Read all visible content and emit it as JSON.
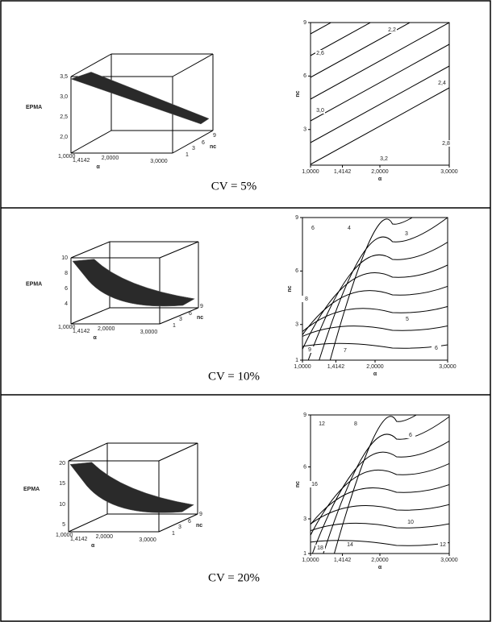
{
  "panels": [
    {
      "caption": "CV = 5%",
      "surface": {
        "z_label": "EPMA",
        "x_label": "α",
        "y_label": "nc",
        "z_ticks": [
          "3,5",
          "3,0",
          "2,5",
          "2,0"
        ],
        "x_ticks": [
          "1,0000",
          "1,4142",
          "2,0000",
          "3,0000"
        ],
        "y_ticks": [
          "1",
          "3",
          "6",
          "9"
        ]
      },
      "contour": {
        "x_label": "α",
        "y_label": "nc",
        "x_ticks": [
          "1,0000",
          "1,4142",
          "2,0000",
          "3,0000"
        ],
        "y_ticks": [
          "9",
          "6",
          "3"
        ],
        "levels": [
          "2,2",
          "2,4",
          "2,6",
          "2,8",
          "3,0",
          "3,2"
        ]
      }
    },
    {
      "caption": "CV =  10%",
      "surface": {
        "z_label": "EPMA",
        "x_label": "α",
        "y_label": "nc",
        "z_ticks": [
          "10",
          "8",
          "6",
          "4"
        ],
        "x_ticks": [
          "1,0000",
          "1,4142",
          "2,0000",
          "3,0000"
        ],
        "y_ticks": [
          "1",
          "3",
          "6",
          "9"
        ]
      },
      "contour": {
        "x_label": "α",
        "y_label": "nc",
        "x_ticks": [
          "1,0000",
          "1,4142",
          "2,0000",
          "3,0000"
        ],
        "y_ticks": [
          "9",
          "6",
          "3",
          "1"
        ],
        "levels": [
          "3",
          "4",
          "5",
          "6",
          "6",
          "7",
          "8",
          "9"
        ]
      }
    },
    {
      "caption": "CV =  20%",
      "surface": {
        "z_label": "EPMA",
        "x_label": "α",
        "y_label": "nc",
        "z_ticks": [
          "20",
          "15",
          "10",
          "5"
        ],
        "x_ticks": [
          "1,0000",
          "1,4142",
          "2,0000",
          "3,0000"
        ],
        "y_ticks": [
          "1",
          "3",
          "6",
          "9"
        ]
      },
      "contour": {
        "x_label": "α",
        "y_label": "nc",
        "x_ticks": [
          "1,0000",
          "1,4142",
          "2,0000",
          "3,0000"
        ],
        "y_ticks": [
          "9",
          "6",
          "3",
          "1"
        ],
        "levels": [
          "6",
          "8",
          "10",
          "12",
          "12",
          "14",
          "16",
          "18"
        ]
      }
    }
  ]
}
